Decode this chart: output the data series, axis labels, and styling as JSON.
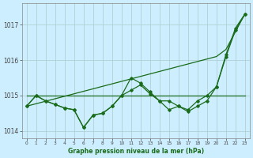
{
  "x": [
    0,
    1,
    2,
    3,
    4,
    5,
    6,
    7,
    8,
    9,
    10,
    11,
    12,
    13,
    14,
    15,
    16,
    17,
    18,
    19,
    20,
    21,
    22,
    23
  ],
  "line_smooth": [
    1014.7,
    1014.77,
    1014.84,
    1014.91,
    1014.98,
    1015.05,
    1015.12,
    1015.19,
    1015.26,
    1015.33,
    1015.4,
    1015.47,
    1015.54,
    1015.61,
    1015.68,
    1015.75,
    1015.82,
    1015.89,
    1015.96,
    1016.03,
    1016.1,
    1016.3,
    1016.8,
    1017.3
  ],
  "line_flat": [
    1015.0,
    1015.0,
    1015.0,
    1015.0,
    1015.0,
    1015.0,
    1015.0,
    1015.0,
    1015.0,
    1015.0,
    1015.0,
    1015.0,
    1015.0,
    1015.0,
    1015.0,
    1015.0,
    1015.0,
    1015.0,
    1015.0,
    1015.0,
    1015.0,
    1015.0,
    1015.0,
    1015.0
  ],
  "line_jagged1": [
    1014.7,
    1015.0,
    1014.85,
    1014.75,
    1014.65,
    1014.6,
    1014.1,
    1014.45,
    1014.5,
    1014.7,
    1015.0,
    1015.5,
    1015.35,
    1015.1,
    1014.85,
    1014.6,
    1014.7,
    1014.55,
    1014.7,
    1014.85,
    1015.25,
    1016.15,
    1016.9,
    1017.3
  ],
  "line_jagged2": [
    1014.7,
    1015.0,
    1014.85,
    1014.75,
    1014.65,
    1014.6,
    1014.1,
    1014.45,
    1014.5,
    1014.7,
    1015.0,
    1015.15,
    1015.3,
    1015.05,
    1014.85,
    1014.85,
    1014.7,
    1014.6,
    1014.85,
    1015.0,
    1015.25,
    1016.1,
    1016.85,
    1017.3
  ],
  "bg_color": "#cceeff",
  "grid_color": "#aacccc",
  "line_color": "#1a6b1a",
  "xlabel": "Graphe pression niveau de la mer (hPa)",
  "ylim": [
    1013.8,
    1017.6
  ],
  "yticks": [
    1014,
    1015,
    1016,
    1017
  ],
  "xlim": [
    -0.5,
    23.5
  ]
}
